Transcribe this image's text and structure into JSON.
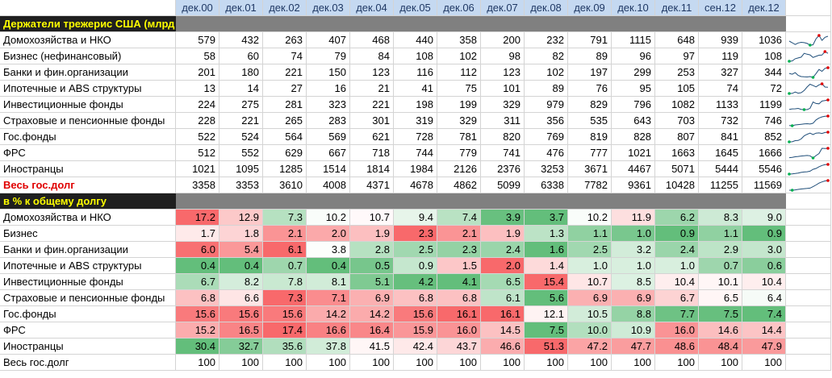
{
  "header": {
    "columns": [
      "дек.00",
      "дек.01",
      "дек.02",
      "дек.03",
      "дек.04",
      "дек.05",
      "дек.06",
      "дек.07",
      "дек.08",
      "дек.09",
      "дек.10",
      "дек.11",
      "сен.12",
      "дек.12"
    ]
  },
  "section1": {
    "title": "Держатели трежерис США (млрд",
    "rows": [
      {
        "label": "Домохозяйства и НКО",
        "values": [
          579,
          432,
          263,
          407,
          468,
          440,
          358,
          200,
          232,
          791,
          1115,
          648,
          939,
          1036
        ]
      },
      {
        "label": "Бизнес (нефинансовый)",
        "values": [
          58,
          60,
          74,
          79,
          84,
          108,
          102,
          98,
          82,
          89,
          96,
          97,
          119,
          108
        ]
      },
      {
        "label": "Банки и фин.организации",
        "values": [
          201,
          180,
          221,
          150,
          123,
          116,
          112,
          123,
          102,
          197,
          299,
          253,
          327,
          344
        ]
      },
      {
        "label": "Ипотечные и ABS структуры",
        "values": [
          13,
          14,
          27,
          16,
          21,
          41,
          75,
          101,
          89,
          76,
          95,
          105,
          74,
          72
        ]
      },
      {
        "label": "Инвестиционные фонды",
        "values": [
          224,
          275,
          281,
          323,
          221,
          198,
          199,
          329,
          979,
          829,
          796,
          1082,
          1133,
          1199
        ]
      },
      {
        "label": "Страховые и пенсионные фонды",
        "values": [
          228,
          221,
          265,
          283,
          301,
          319,
          329,
          311,
          356,
          535,
          643,
          703,
          732,
          746
        ]
      },
      {
        "label": "Гос.фонды",
        "values": [
          522,
          524,
          564,
          569,
          621,
          728,
          781,
          820,
          769,
          819,
          828,
          807,
          841,
          852
        ]
      },
      {
        "label": "ФРС",
        "values": [
          512,
          552,
          629,
          667,
          718,
          744,
          779,
          741,
          476,
          777,
          1021,
          1663,
          1645,
          1666
        ]
      },
      {
        "label": "Иностранцы",
        "values": [
          1021,
          1095,
          1285,
          1514,
          1814,
          1984,
          2126,
          2376,
          3253,
          3671,
          4467,
          5071,
          5444,
          5546
        ]
      },
      {
        "label": "Весь гос.долг",
        "values": [
          3358,
          3353,
          3610,
          4008,
          4371,
          4678,
          4862,
          5099,
          6338,
          7782,
          9361,
          10428,
          11255,
          11569
        ],
        "highlight": true
      }
    ]
  },
  "section2": {
    "title": "в % к общему долгу",
    "rows": [
      {
        "label": "Домохозяйства и НКО",
        "values": [
          "17.2",
          "12.9",
          "7.3",
          "10.2",
          "10.7",
          "9.4",
          "7.4",
          "3.9",
          "3.7",
          "10.2",
          "11.9",
          "6.2",
          "8.3",
          "9.0"
        ]
      },
      {
        "label": "Бизнес",
        "values": [
          "1.7",
          "1.8",
          "2.1",
          "2.0",
          "1.9",
          "2.3",
          "2.1",
          "1.9",
          "1.3",
          "1.1",
          "1.0",
          "0.9",
          "1.1",
          "0.9"
        ]
      },
      {
        "label": "Банки и фин.организации",
        "values": [
          "6.0",
          "5.4",
          "6.1",
          "3.8",
          "2.8",
          "2.5",
          "2.3",
          "2.4",
          "1.6",
          "2.5",
          "3.2",
          "2.4",
          "2.9",
          "3.0"
        ]
      },
      {
        "label": "Ипотечные и ABS структуры",
        "values": [
          "0.4",
          "0.4",
          "0.7",
          "0.4",
          "0.5",
          "0.9",
          "1.5",
          "2.0",
          "1.4",
          "1.0",
          "1.0",
          "1.0",
          "0.7",
          "0.6"
        ]
      },
      {
        "label": "Инвестиционные фонды",
        "values": [
          "6.7",
          "8.2",
          "7.8",
          "8.1",
          "5.1",
          "4.2",
          "4.1",
          "6.5",
          "15.4",
          "10.7",
          "8.5",
          "10.4",
          "10.1",
          "10.4"
        ]
      },
      {
        "label": "Страховые и пенсионные фонды",
        "values": [
          "6.8",
          "6.6",
          "7.3",
          "7.1",
          "6.9",
          "6.8",
          "6.8",
          "6.1",
          "5.6",
          "6.9",
          "6.9",
          "6.7",
          "6.5",
          "6.4"
        ]
      },
      {
        "label": "Гос.фонды",
        "values": [
          "15.6",
          "15.6",
          "15.6",
          "14.2",
          "14.2",
          "15.6",
          "16.1",
          "16.1",
          "12.1",
          "10.5",
          "8.8",
          "7.7",
          "7.5",
          "7.4"
        ]
      },
      {
        "label": "ФРС",
        "values": [
          "15.2",
          "16.5",
          "17.4",
          "16.6",
          "16.4",
          "15.9",
          "16.0",
          "14.5",
          "7.5",
          "10.0",
          "10.9",
          "16.0",
          "14.6",
          "14.4"
        ]
      },
      {
        "label": "Иностранцы",
        "values": [
          "30.4",
          "32.7",
          "35.6",
          "37.8",
          "41.5",
          "42.4",
          "43.7",
          "46.6",
          "51.3",
          "47.2",
          "47.7",
          "48.6",
          "48.4",
          "47.9"
        ]
      },
      {
        "label": "Весь гос.долг",
        "values": [
          "100",
          "100",
          "100",
          "100",
          "100",
          "100",
          "100",
          "100",
          "100",
          "100",
          "100",
          "100",
          "100",
          "100"
        ],
        "plain": true
      }
    ]
  },
  "colors": {
    "header_fill": "#c5d9f1",
    "section_fill": "#1f1f1f",
    "section_text": "#ffff00",
    "band_fill": "#808080",
    "heat_high": "#f8696b",
    "heat_low": "#63be7b",
    "spark_line": "#1f4e79",
    "spark_max": "#e00000",
    "spark_min": "#00b050"
  }
}
